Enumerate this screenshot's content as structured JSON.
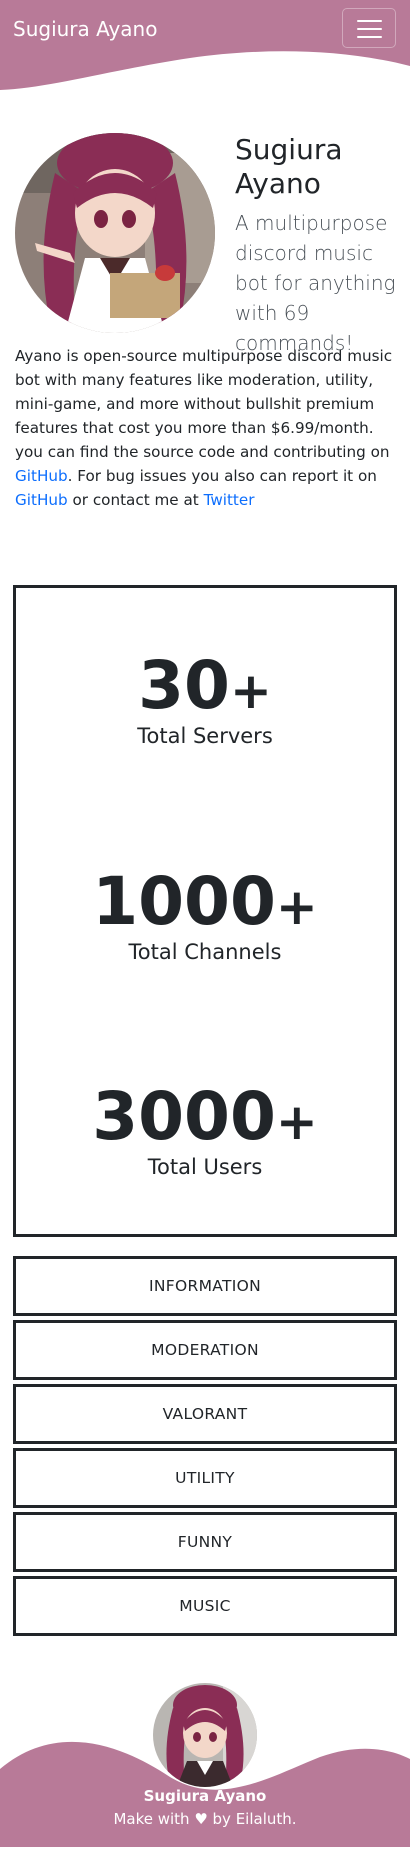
{
  "navbar": {
    "brand": "Sugiura Ayano",
    "menu_icon": "hamburger-menu-icon"
  },
  "hero": {
    "title_line1": "Sugiura",
    "title_line2": "Ayano",
    "lead": "A multipurpose discord music bot for anything with 69 commands!",
    "avatar_icon": "anime-girl-avatar"
  },
  "description": {
    "part1": "Ayano is open-source multipurpose discord music bot with many features like moderation, utility, mini-game, and more without bullshit premium features that cost you more than $6.99/month. you can find the source code and contributing on ",
    "link_github_1": "GitHub",
    "part2": ". For bug issues you also can report it on ",
    "link_github_2": "GitHub",
    "part3": " or contact me at ",
    "link_twitter": "Twitter"
  },
  "stats": [
    {
      "number": "30",
      "suffix": "+",
      "label": "Total Servers"
    },
    {
      "number": "1000",
      "suffix": "+",
      "label": "Total Channels"
    },
    {
      "number": "3000",
      "suffix": "+",
      "label": "Total Users"
    }
  ],
  "categories": [
    "INFORMATION",
    "MODERATION",
    "VALORANT",
    "UTILITY",
    "FUNNY",
    "MUSIC"
  ],
  "footer": {
    "name": "Sugiura Ayano",
    "credit_prefix": "Make with ",
    "heart": "♥",
    "credit_suffix": " by Eilaluth."
  },
  "colors": {
    "brand": "#b87a98",
    "text": "#212529",
    "link": "#0d6efd"
  }
}
